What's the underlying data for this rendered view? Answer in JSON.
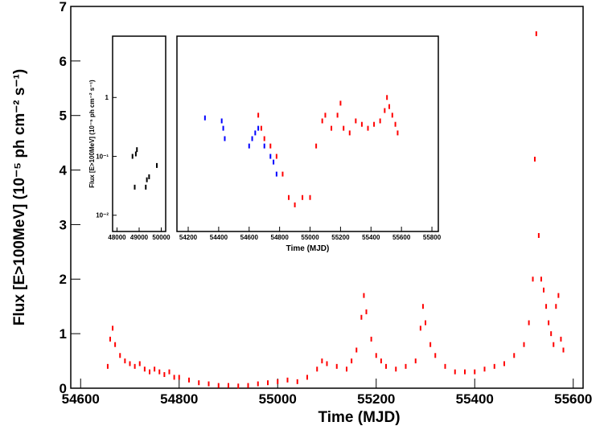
{
  "chart_data": [
    {
      "type": "scatter",
      "x_label": "Time (MJD)",
      "y_label": "Flux [E>100MeV] (10⁻⁵ ph cm⁻² s⁻¹)",
      "xlim": [
        54580,
        55620
      ],
      "ylim": [
        0,
        7
      ],
      "log_y": false,
      "xticks": [
        54600,
        54800,
        55000,
        55200,
        55400,
        55600
      ],
      "yticks": [
        0,
        1,
        2,
        3,
        4,
        5,
        6,
        7
      ],
      "series": [
        {
          "color": "#ff0000",
          "x": [
            54655,
            54660,
            54665,
            54670,
            54680,
            54690,
            54700,
            54710,
            54720,
            54730,
            54740,
            54750,
            54760,
            54770,
            54780,
            54790,
            54800,
            54820,
            54840,
            54860,
            54880,
            54900,
            54920,
            54940,
            54960,
            54980,
            55000,
            55020,
            55040,
            55060,
            55080,
            55090,
            55100,
            55120,
            55140,
            55150,
            55160,
            55170,
            55175,
            55180,
            55190,
            55200,
            55210,
            55220,
            55240,
            55260,
            55280,
            55290,
            55295,
            55300,
            55310,
            55320,
            55340,
            55360,
            55380,
            55400,
            55420,
            55440,
            55460,
            55480,
            55500,
            55510,
            55518,
            55522,
            55525,
            55530,
            55535,
            55540,
            55545,
            55550,
            55555,
            55560,
            55565,
            55570,
            55575,
            55580
          ],
          "values": [
            0.4,
            0.9,
            1.1,
            0.8,
            0.6,
            0.5,
            0.45,
            0.4,
            0.45,
            0.35,
            0.3,
            0.35,
            0.3,
            0.25,
            0.3,
            0.2,
            0.2,
            0.15,
            0.1,
            0.08,
            0.05,
            0.05,
            0.04,
            0.05,
            0.08,
            0.1,
            0.12,
            0.15,
            0.12,
            0.2,
            0.35,
            0.5,
            0.45,
            0.4,
            0.35,
            0.5,
            0.7,
            1.3,
            1.7,
            1.4,
            0.9,
            0.6,
            0.5,
            0.4,
            0.35,
            0.4,
            0.5,
            1.1,
            1.5,
            1.2,
            0.8,
            0.6,
            0.4,
            0.3,
            0.3,
            0.3,
            0.35,
            0.4,
            0.45,
            0.6,
            0.8,
            1.2,
            2.0,
            4.2,
            6.5,
            2.8,
            2.0,
            1.8,
            1.5,
            1.2,
            1.0,
            0.8,
            1.5,
            1.7,
            0.9,
            0.7
          ]
        }
      ]
    },
    {
      "type": "scatter",
      "y_label": "Flux [E>100MeV] (10⁻⁵ ph cm⁻² s⁻¹)",
      "xlim": [
        47800,
        50200
      ],
      "ylim": [
        0.0053,
        11
      ],
      "log_y": true,
      "xticks": [
        48000,
        49000,
        50000
      ],
      "yticks": [
        {
          "value": 0.01,
          "label": "10⁻²"
        },
        {
          "value": 0.1,
          "label": "10⁻¹"
        },
        1
      ],
      "series": [
        {
          "color": "#000000",
          "x": [
            48700,
            48800,
            48850,
            48900,
            49300,
            49350,
            49450,
            49800
          ],
          "values": [
            0.1,
            0.03,
            0.11,
            0.13,
            0.03,
            0.04,
            0.045,
            0.07
          ]
        }
      ]
    },
    {
      "type": "scatter",
      "x_label": "Time (MJD)",
      "xlim": [
        54126,
        55842
      ],
      "ylim": [
        0.0053,
        11
      ],
      "log_y": true,
      "xticks": [
        54200,
        54400,
        54600,
        54800,
        55000,
        55200,
        55400,
        55600,
        55800
      ],
      "series": [
        {
          "color": "#0000ff",
          "x": [
            54310,
            54420,
            54430,
            54440,
            54600,
            54620,
            54640,
            54660,
            54700,
            54740,
            54760,
            54780
          ],
          "values": [
            0.45,
            0.4,
            0.3,
            0.2,
            0.15,
            0.2,
            0.25,
            0.3,
            0.15,
            0.1,
            0.08,
            0.05
          ]
        },
        {
          "color": "#ff0000",
          "x": [
            54660,
            54680,
            54700,
            54740,
            54780,
            54820,
            54860,
            54900,
            54950,
            55000,
            55040,
            55080,
            55100,
            55140,
            55180,
            55200,
            55220,
            55260,
            55300,
            55340,
            55380,
            55420,
            55460,
            55490,
            55505,
            55520,
            55540,
            55560,
            55575
          ],
          "values": [
            0.5,
            0.3,
            0.2,
            0.15,
            0.1,
            0.05,
            0.02,
            0.015,
            0.02,
            0.02,
            0.15,
            0.4,
            0.5,
            0.3,
            0.5,
            0.8,
            0.3,
            0.25,
            0.4,
            0.35,
            0.3,
            0.35,
            0.4,
            0.6,
            1.0,
            0.7,
            0.5,
            0.35,
            0.25
          ]
        }
      ]
    }
  ]
}
